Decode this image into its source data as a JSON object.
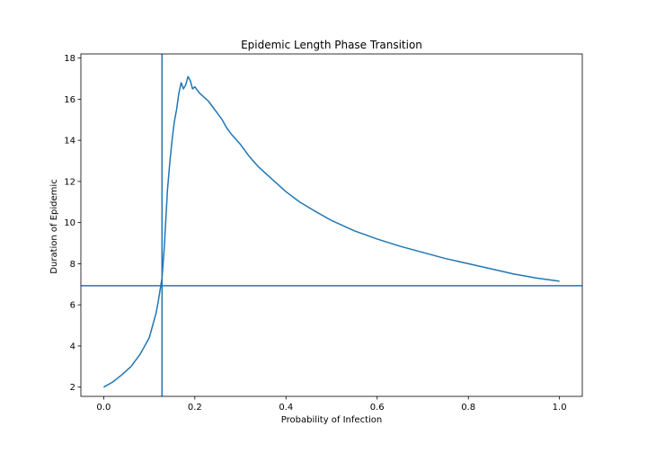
{
  "chart_data": {
    "type": "line",
    "title": "Epidemic Length Phase Transition",
    "xlabel": "Probability of Infection",
    "ylabel": "Duration of Epidemic",
    "xlim": [
      -0.05,
      1.05
    ],
    "ylim": [
      1.55,
      18.2
    ],
    "xticks": [
      0.0,
      0.2,
      0.4,
      0.6,
      0.8,
      1.0
    ],
    "xtick_labels": [
      "0.0",
      "0.2",
      "0.4",
      "0.6",
      "0.8",
      "1.0"
    ],
    "yticks": [
      2,
      4,
      6,
      8,
      10,
      12,
      14,
      16,
      18
    ],
    "ytick_labels": [
      "2",
      "4",
      "6",
      "8",
      "10",
      "12",
      "14",
      "16",
      "18"
    ],
    "grid": false,
    "color": "#1f77b4",
    "vline_x": 0.128,
    "hline_y": 6.93,
    "series": [
      {
        "x": [
          0.0,
          0.02,
          0.04,
          0.06,
          0.08,
          0.09,
          0.1,
          0.105,
          0.11,
          0.115,
          0.12,
          0.125,
          0.128,
          0.13,
          0.133,
          0.136,
          0.14,
          0.145,
          0.15,
          0.155,
          0.16,
          0.165,
          0.17,
          0.175,
          0.18,
          0.185,
          0.19,
          0.195,
          0.2,
          0.21,
          0.22,
          0.23,
          0.24,
          0.25,
          0.26,
          0.27,
          0.28,
          0.3,
          0.32,
          0.34,
          0.36,
          0.38,
          0.4,
          0.43,
          0.46,
          0.5,
          0.55,
          0.6,
          0.65,
          0.7,
          0.75,
          0.8,
          0.85,
          0.9,
          0.95,
          1.0
        ],
        "values": [
          2.0,
          2.25,
          2.6,
          3.0,
          3.6,
          4.0,
          4.4,
          4.8,
          5.2,
          5.6,
          6.2,
          6.9,
          7.3,
          7.9,
          8.8,
          10.0,
          11.6,
          12.9,
          14.0,
          14.9,
          15.5,
          16.3,
          16.8,
          16.5,
          16.7,
          17.1,
          16.9,
          16.5,
          16.6,
          16.3,
          16.1,
          15.9,
          15.6,
          15.3,
          15.0,
          14.6,
          14.3,
          13.8,
          13.2,
          12.7,
          12.3,
          11.9,
          11.5,
          11.0,
          10.6,
          10.1,
          9.6,
          9.2,
          8.85,
          8.55,
          8.25,
          8.0,
          7.75,
          7.5,
          7.3,
          7.15
        ]
      }
    ]
  }
}
